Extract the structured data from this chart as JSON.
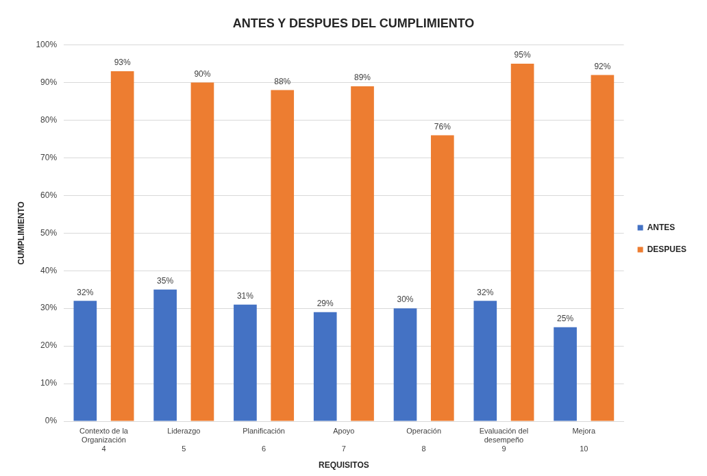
{
  "chart_data": {
    "type": "bar",
    "title": "ANTES Y DESPUES DEL CUMPLIMIENTO",
    "xlabel": "REQUISITOS",
    "ylabel": "CUMPLIMIENTO",
    "categories": [
      "Contexto de la Organización\n4",
      "Liderazgo\n5",
      "Planificación\n6",
      "Apoyo\n7",
      "Operación\n8",
      "Evaluación del desempeño\n9",
      "Mejora\n10"
    ],
    "series": [
      {
        "name": "ANTES",
        "color": "#4472c4",
        "values": [
          32,
          35,
          31,
          29,
          30,
          32,
          25
        ],
        "value_labels": [
          "32%",
          "35%",
          "31%",
          "29%",
          "30%",
          "32%",
          "25%"
        ]
      },
      {
        "name": "DESPUES",
        "color": "#ed7d31",
        "values": [
          93,
          90,
          88,
          89,
          76,
          95,
          92
        ],
        "value_labels": [
          "93%",
          "90%",
          "88%",
          "89%",
          "76%",
          "95%",
          "92%"
        ]
      }
    ],
    "ylim": [
      0,
      100
    ],
    "yticks": [
      {
        "value": 0,
        "label": "0%"
      },
      {
        "value": 10,
        "label": "10%"
      },
      {
        "value": 20,
        "label": "20%"
      },
      {
        "value": 30,
        "label": "30%"
      },
      {
        "value": 40,
        "label": "40%"
      },
      {
        "value": 50,
        "label": "50%"
      },
      {
        "value": 60,
        "label": "60%"
      },
      {
        "value": 70,
        "label": "70%"
      },
      {
        "value": 80,
        "label": "80%"
      },
      {
        "value": 90,
        "label": "90%"
      },
      {
        "value": 100,
        "label": "100%"
      }
    ],
    "grid": "y",
    "legend": "right"
  }
}
